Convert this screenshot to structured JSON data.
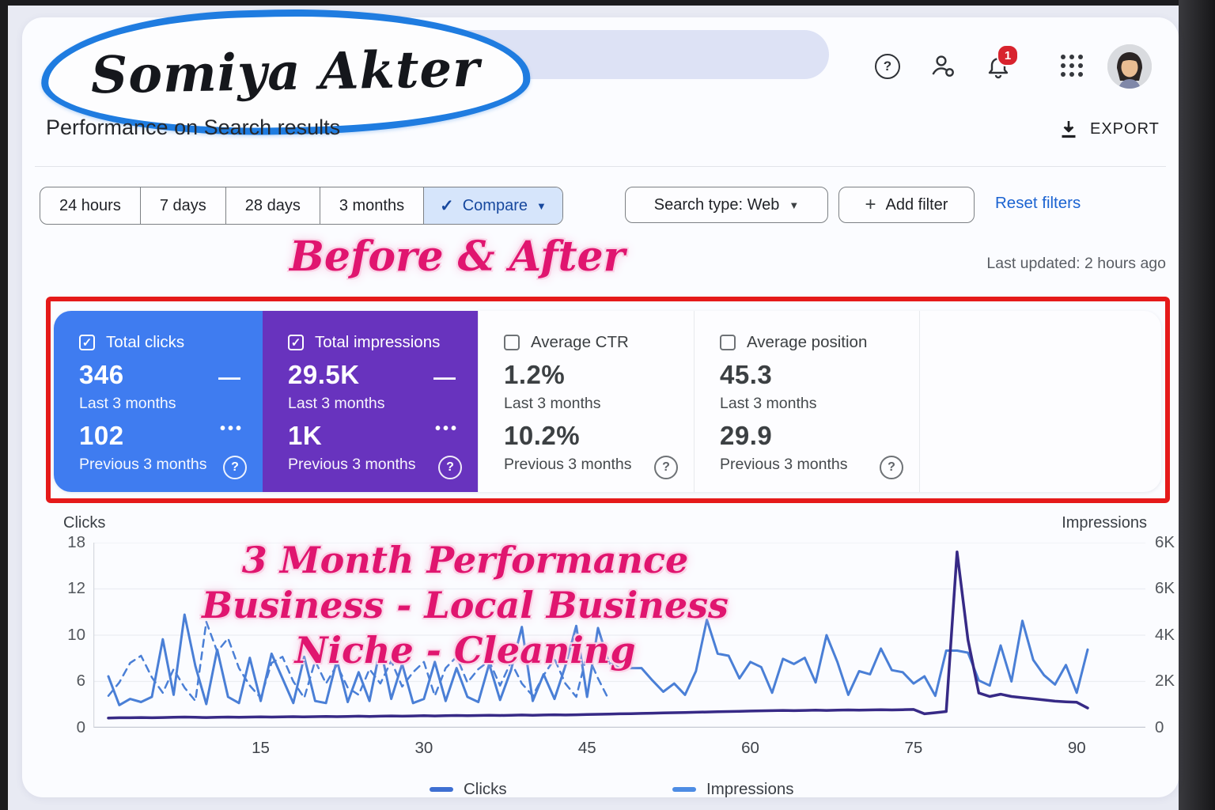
{
  "icons": {
    "check": "✓",
    "caret_down": "▼",
    "plus": "+",
    "dash": "—",
    "dots": "•••",
    "question": "?"
  },
  "header": {
    "logo_text": "Somiya Akter",
    "page_title": "Performance on Search results",
    "export_label": "EXPORT",
    "notification_count": "1",
    "help_glyph": "?"
  },
  "filters": {
    "tabs": [
      "24 hours",
      "7 days",
      "28 days",
      "3 months"
    ],
    "compare_label": "Compare",
    "search_type_label": "Search type: Web",
    "add_filter_label": "Add filter",
    "reset_label": "Reset filters"
  },
  "annotations": {
    "before_after": "Before & After",
    "chart_note_line1": "3 Month Performance",
    "chart_note_line2": "Business - Local Business",
    "chart_note_line3": "Niche - Cleaning"
  },
  "last_updated": "Last updated: 2 hours ago",
  "metric_cards": [
    {
      "label": "Total clicks",
      "checked": true,
      "primary_value": "346",
      "primary_period": "Last 3 months",
      "secondary_value": "102",
      "secondary_period": "Previous 3 months",
      "bg": "#3f7cf0"
    },
    {
      "label": "Total impressions",
      "checked": true,
      "primary_value": "29.5K",
      "primary_period": "Last 3 months",
      "secondary_value": "1K",
      "secondary_period": "Previous 3 months",
      "bg": "#6833be"
    },
    {
      "label": "Average CTR",
      "checked": false,
      "primary_value": "1.2%",
      "primary_period": "Last 3 months",
      "secondary_value": "10.2%",
      "secondary_period": "Previous 3 months",
      "bg": ""
    },
    {
      "label": "Average position",
      "checked": false,
      "primary_value": "45.3",
      "primary_period": "Last 3 months",
      "secondary_value": "29.9",
      "secondary_period": "Previous 3 months",
      "bg": ""
    }
  ],
  "chart_data": {
    "type": "line",
    "x_axis": {
      "ticks": [
        15,
        30,
        45,
        60,
        75,
        90
      ],
      "max_day": 91
    },
    "y_left": {
      "title": "Clicks",
      "tick_labels": [
        "18",
        "12",
        "10",
        "6",
        "0"
      ],
      "max": 18
    },
    "y_right": {
      "title": "Impressions",
      "tick_labels": [
        "6K",
        "6K",
        "4K",
        "2K",
        "0"
      ],
      "max": 8000
    },
    "series": [
      {
        "name": "Clicks (last 3 months)",
        "axis": "left",
        "style": "solid",
        "color": "#4a7fd6",
        "width": 3,
        "values": [
          5,
          2.2,
          2.8,
          2.5,
          3,
          8.6,
          3.2,
          11,
          6,
          2.3,
          7.6,
          3,
          2.4,
          6.8,
          2.6,
          7.2,
          4.8,
          2.4,
          6.9,
          2.6,
          2.4,
          6.6,
          2.5,
          5.4,
          2.6,
          7.8,
          2.8,
          6.2,
          2.4,
          2.8,
          6.4,
          2.6,
          5.8,
          3,
          2.5,
          6.2,
          2.7,
          5.6,
          9.8,
          2.6,
          5.2,
          2.8,
          6,
          9.9,
          3,
          9.7,
          6.3,
          5.8,
          5.8,
          5.8,
          4.6,
          3.5,
          4.3,
          3.2,
          5.5,
          10.5,
          7.2,
          7,
          4.8,
          6.4,
          5.9,
          3.4,
          6.7,
          6.2,
          6.8,
          4.4,
          9,
          6.4,
          3.2,
          5.5,
          5.2,
          7.7,
          5.6,
          5.4,
          4.3,
          5,
          3.1,
          7.5,
          7.5,
          7.3,
          4.6,
          4.1,
          8,
          4.5,
          10.4,
          6.6,
          5.1,
          4.2,
          6.1,
          3.4,
          7.6
        ]
      },
      {
        "name": "Clicks (previous 3 months)",
        "axis": "left",
        "style": "dashed",
        "color": "#4a7fd6",
        "width": 2.5,
        "values": [
          3.1,
          4.4,
          6.3,
          7,
          4.9,
          3.4,
          5.7,
          3.9,
          2.6,
          10.3,
          7.4,
          8.7,
          5.8,
          4.1,
          2.9,
          6.3,
          6.9,
          4.5,
          2.9,
          6.5,
          4.3,
          6.1,
          3.9,
          3.2,
          5.7,
          4.3,
          6.5,
          4,
          5.4,
          6.4,
          3.1,
          5.8,
          6.9,
          4.4,
          5.7,
          6.5,
          4.1,
          6.4,
          4.3,
          3.1,
          5.1,
          6.7,
          4.3,
          3,
          7.2,
          4.8,
          2.7
        ]
      },
      {
        "name": "Impressions (last 3 months)",
        "axis": "right",
        "style": "solid",
        "color": "#372a86",
        "width": 3.5,
        "values": [
          420,
          430,
          430,
          440,
          430,
          440,
          450,
          460,
          450,
          440,
          450,
          460,
          450,
          460,
          470,
          460,
          470,
          480,
          470,
          480,
          490,
          480,
          490,
          500,
          490,
          500,
          510,
          500,
          510,
          520,
          510,
          520,
          530,
          520,
          530,
          540,
          530,
          540,
          550,
          540,
          550,
          560,
          550,
          560,
          570,
          580,
          590,
          600,
          610,
          620,
          630,
          640,
          650,
          660,
          670,
          680,
          690,
          700,
          710,
          720,
          730,
          740,
          750,
          740,
          750,
          760,
          750,
          760,
          770,
          760,
          770,
          780,
          770,
          780,
          790,
          600,
          650,
          700,
          7600,
          3800,
          1500,
          1350,
          1450,
          1350,
          1300,
          1250,
          1200,
          1150,
          1120,
          1100,
          850
        ]
      }
    ],
    "legend": [
      {
        "label": "Clicks",
        "color": "#3e6fd2"
      },
      {
        "label": "Impressions",
        "color": "#4d8ce4"
      }
    ]
  }
}
